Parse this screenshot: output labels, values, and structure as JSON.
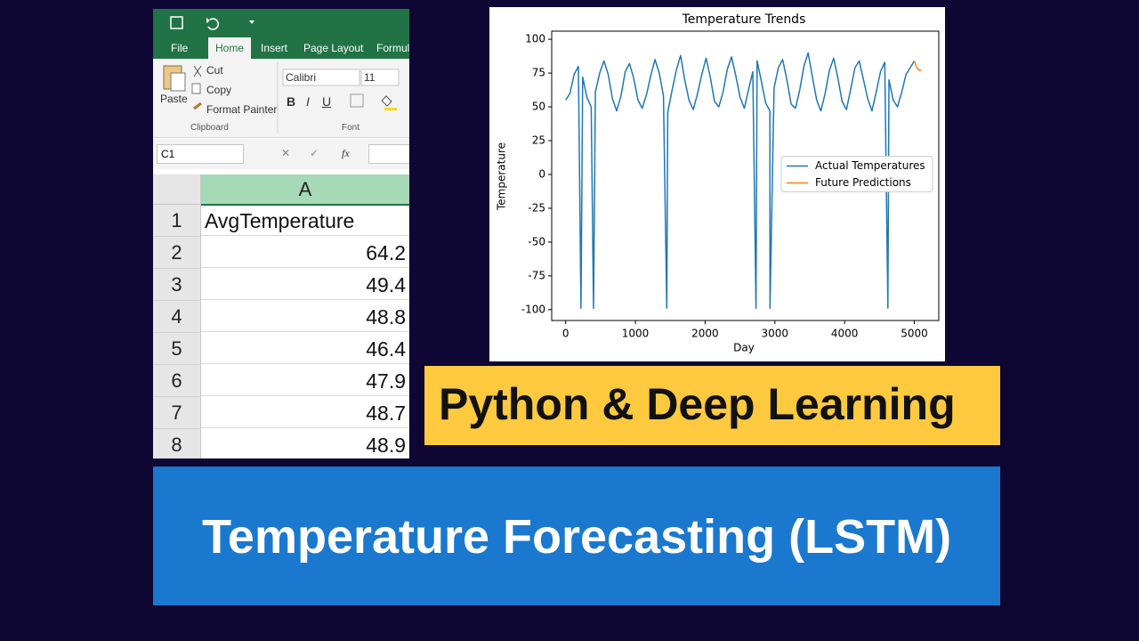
{
  "spreadsheet": {
    "tabs": [
      "File",
      "Home",
      "Insert",
      "Page Layout",
      "Formul"
    ],
    "clipboard": {
      "paste": "Paste",
      "cut": "Cut",
      "copy": "Copy",
      "format_painter": "Format Painter",
      "group": "Clipboard"
    },
    "font": {
      "name": "Calibri",
      "size": "11",
      "group": "Font"
    },
    "name_box": "C1",
    "fx": "fx",
    "column": "A",
    "rows": [
      [
        1,
        "AvgTemperature"
      ],
      [
        2,
        64.2
      ],
      [
        3,
        49.4
      ],
      [
        4,
        48.8
      ],
      [
        5,
        46.4
      ],
      [
        6,
        47.9
      ],
      [
        7,
        48.7
      ],
      [
        8,
        48.9
      ]
    ]
  },
  "chart_data": {
    "type": "line",
    "title": "Temperature Trends",
    "x_label": "Day",
    "y_label": "Temperature",
    "series": [
      {
        "name": "Actual Temperatures",
        "color": "#1f77b4",
        "x": [
          0,
          61,
          122,
          183,
          220,
          244,
          305,
          366,
          400,
          427,
          488,
          549,
          610,
          671,
          732,
          793,
          854,
          915,
          976,
          1037,
          1098,
          1159,
          1220,
          1281,
          1342,
          1403,
          1450,
          1464,
          1525,
          1586,
          1647,
          1708,
          1769,
          1830,
          1891,
          1952,
          2013,
          2074,
          2135,
          2196,
          2257,
          2318,
          2379,
          2440,
          2501,
          2562,
          2623,
          2684,
          2730,
          2745,
          2806,
          2867,
          2928,
          2930,
          2989,
          3050,
          3111,
          3172,
          3233,
          3294,
          3355,
          3416,
          3477,
          3538,
          3599,
          3660,
          3721,
          3782,
          3843,
          3904,
          3965,
          4026,
          4087,
          4148,
          4209,
          4270,
          4331,
          4392,
          4453,
          4514,
          4575,
          4620,
          4636,
          4697,
          4758,
          4819,
          4880,
          4941,
          5000
        ],
        "values": [
          55,
          60,
          74,
          80,
          -99,
          72,
          57,
          50,
          -99,
          61,
          75,
          84,
          74,
          56,
          47,
          58,
          76,
          82,
          71,
          55,
          49,
          59,
          73,
          85,
          75,
          58,
          -99,
          46,
          62,
          77,
          88,
          70,
          55,
          48,
          60,
          74,
          86,
          72,
          54,
          50,
          61,
          78,
          87,
          73,
          57,
          49,
          63,
          76,
          -99,
          84,
          69,
          53,
          47,
          -99,
          64,
          79,
          85,
          70,
          52,
          49,
          62,
          80,
          90,
          72,
          55,
          47,
          60,
          77,
          86,
          71,
          54,
          48,
          63,
          79,
          84,
          70,
          56,
          47,
          61,
          76,
          83,
          -99,
          70,
          55,
          50,
          61,
          74,
          79,
          84
        ]
      },
      {
        "name": "Future Predictions",
        "color": "#ff7f0e",
        "x": [
          5000,
          5025,
          5050,
          5075,
          5100
        ],
        "values": [
          84,
          80,
          78,
          77,
          77
        ]
      }
    ],
    "xlim": [
      -200,
      5350
    ],
    "ylim": [
      -108,
      106
    ],
    "xticks": [
      0,
      1000,
      2000,
      3000,
      4000,
      5000
    ],
    "yticks": [
      -100,
      -75,
      -50,
      -25,
      0,
      25,
      50,
      75,
      100
    ],
    "grid": false,
    "legend": "right"
  },
  "banners": {
    "subtitle": "Python & Deep Learning",
    "title": "Temperature Forecasting (LSTM)"
  }
}
